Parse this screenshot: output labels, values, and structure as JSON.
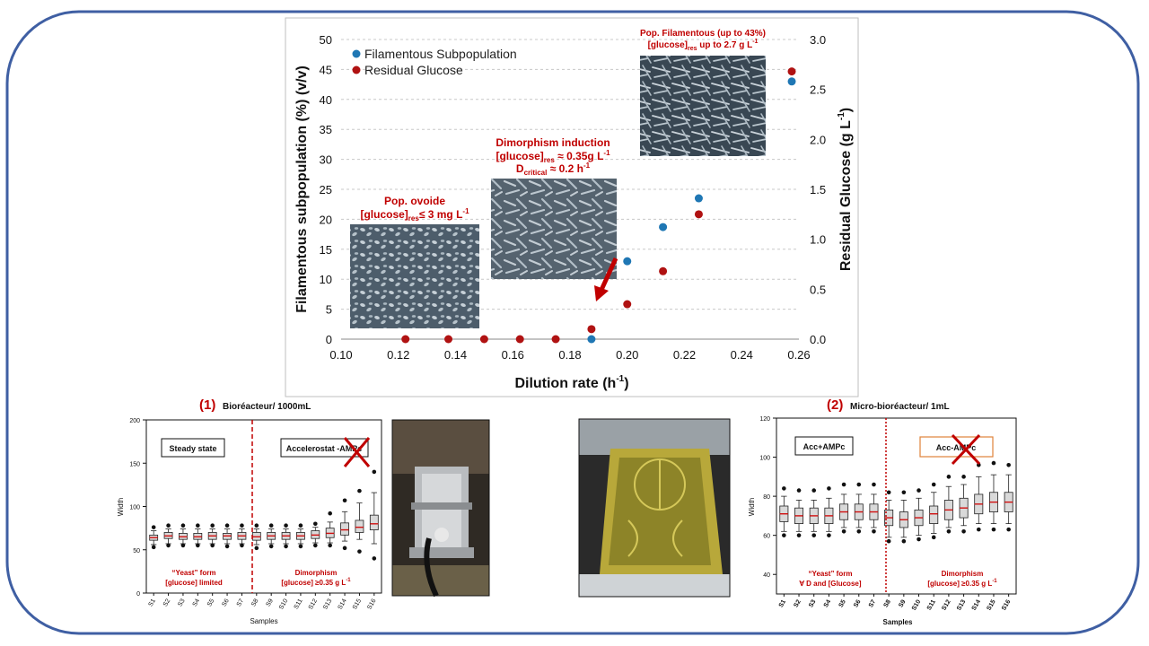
{
  "colors": {
    "frame": "#3f5fa3",
    "blue": "#1f77b4",
    "red": "#b01212",
    "label_red": "#c00000",
    "grid": "#c8c8c8",
    "photo_dark": "#4a5a68",
    "photo_light": "#b7c3cc",
    "box_fill": "#d9d9d9",
    "median": "#d01010"
  },
  "icons": [
    "cross-icon"
  ],
  "chart_data": [
    {
      "type": "scatter",
      "xlabel": "Dilution rate (h",
      "xlabel_sup": "-1",
      "xlabel_tail": ")",
      "ylabel": "Filamentous subpopulation (%) (v/v)",
      "y2label": "Residual Glucose (g L",
      "y2label_sup": "-1",
      "y2label_tail": ")",
      "xlim": [
        0.1,
        0.26
      ],
      "ylim": [
        0,
        50
      ],
      "y2lim": [
        0,
        3.0
      ],
      "grid": true,
      "legend_position": "top-left",
      "x_ticks": [
        "0.10",
        "0.12",
        "0.14",
        "0.16",
        "0.18",
        "0.20",
        "0.22",
        "0.24",
        "0.26"
      ],
      "y_ticks": [
        "0",
        "5",
        "10",
        "15",
        "20",
        "25",
        "30",
        "35",
        "40",
        "45",
        "50"
      ],
      "y2_ticks": [
        "0.0",
        "0.5",
        "1.0",
        "1.5",
        "2.0",
        "2.5",
        "3.0"
      ],
      "series": [
        {
          "name": "Filamentous Subpopulation",
          "axis": "y",
          "x": [
            0.1875,
            0.2,
            0.2125,
            0.225,
            0.2575
          ],
          "y": [
            0,
            13,
            18.7,
            23.5,
            43
          ]
        },
        {
          "name": "Residual Glucose",
          "axis": "y2",
          "x": [
            0.1225,
            0.1375,
            0.15,
            0.1625,
            0.175,
            0.1875,
            0.2,
            0.2125,
            0.225,
            0.2575
          ],
          "y": [
            0,
            0,
            0,
            0,
            0,
            0.1,
            0.35,
            0.68,
            1.25,
            2.68
          ]
        }
      ],
      "annotations": {
        "ovoid": {
          "line1": "Pop. ovoide",
          "line2a": "[glucose]",
          "line2sub": "res",
          "line2b": "≤ 3 mg L",
          "line2sup": "-1"
        },
        "dimorphism": {
          "line1": "Dimorphism induction",
          "line2a": "[glucose]",
          "line2sub": "res",
          "line2b": " ≈ 0.35g L",
          "line2sup": "-1",
          "line3a": "D",
          "line3sub": "critical",
          "line3b": " ≈ 0.2 h",
          "line3sup": "-1"
        },
        "filamentous": {
          "line1": "Pop. Filamentous  (up to 43%)",
          "line2a": "[glucose]",
          "line2sub": "res",
          "line2b": " up to 2.7 g L",
          "line2sup": "-1"
        }
      }
    },
    {
      "type": "box",
      "section_number": "(1)",
      "section_title": "Bioréacteur/ 1000mL",
      "xlabel": "Samples",
      "ylabel": "Width",
      "ylim": [
        0,
        200
      ],
      "y_ticks": [
        "0",
        "50",
        "100",
        "150",
        "200"
      ],
      "categories": [
        "S1",
        "S2",
        "S3",
        "S4",
        "S5",
        "S6",
        "S7",
        "S8",
        "S9",
        "S10",
        "S11",
        "S12",
        "S13",
        "S14",
        "S15",
        "S16"
      ],
      "q1": [
        61,
        63,
        62,
        62,
        62,
        62,
        62,
        61,
        62,
        62,
        62,
        63,
        64,
        67,
        70,
        73
      ],
      "median": [
        64,
        66,
        65,
        65,
        66,
        66,
        66,
        65,
        66,
        66,
        66,
        67,
        69,
        73,
        76,
        80
      ],
      "q3": [
        67,
        70,
        69,
        69,
        70,
        69,
        70,
        70,
        70,
        70,
        70,
        72,
        75,
        81,
        84,
        90
      ],
      "wlow": [
        56,
        57,
        57,
        57,
        57,
        57,
        57,
        56,
        57,
        57,
        57,
        58,
        58,
        60,
        62,
        57
      ],
      "whigh": [
        72,
        74,
        74,
        74,
        74,
        74,
        74,
        74,
        74,
        74,
        74,
        76,
        82,
        94,
        104,
        116
      ],
      "out_low": [
        53,
        55,
        55,
        55,
        55,
        54,
        55,
        52,
        54,
        54,
        54,
        55,
        55,
        52,
        48,
        40
      ],
      "out_high": [
        76,
        78,
        78,
        78,
        78,
        78,
        78,
        78,
        78,
        78,
        78,
        80,
        92,
        107,
        118,
        140
      ],
      "split_after_index": 6,
      "box_left_label": "Steady state",
      "box_right_label": "Accelerostat -AMPc",
      "left_note_line1": "“Yeast” form",
      "left_note_line2": "[glucose] limited",
      "right_note_line1": "Dimorphism",
      "right_note_line2": "[glucose] ≥0.35 g L",
      "right_note_sup": "-1"
    },
    {
      "type": "box",
      "section_number": "(2)",
      "section_title": "Micro-bioréacteur/ 1mL",
      "xlabel": "Samples",
      "ylabel": "Width",
      "ylim": [
        30,
        120
      ],
      "y_ticks": [
        "40",
        "60",
        "80",
        "100",
        "120"
      ],
      "categories": [
        "S1",
        "S2",
        "S3",
        "S4",
        "S5",
        "S6",
        "S7",
        "S8",
        "S9",
        "S10",
        "S11",
        "S12",
        "S13",
        "S14",
        "S15",
        "S16"
      ],
      "q1": [
        67,
        66,
        66,
        66,
        68,
        68,
        68,
        65,
        64,
        65,
        66,
        68,
        69,
        71,
        72,
        72
      ],
      "median": [
        71,
        70,
        70,
        70,
        72,
        72,
        72,
        69,
        68,
        69,
        71,
        73,
        74,
        76,
        77,
        77
      ],
      "q3": [
        75,
        74,
        74,
        74,
        76,
        76,
        76,
        73,
        72,
        73,
        75,
        78,
        79,
        81,
        82,
        82
      ],
      "wlow": [
        62,
        62,
        62,
        62,
        64,
        64,
        64,
        59,
        59,
        60,
        61,
        64,
        65,
        66,
        66,
        66
      ],
      "whigh": [
        80,
        78,
        78,
        79,
        81,
        81,
        81,
        78,
        78,
        79,
        82,
        85,
        86,
        90,
        91,
        91
      ],
      "out_low": [
        60,
        60,
        60,
        60,
        62,
        62,
        62,
        57,
        57,
        58,
        59,
        62,
        62,
        63,
        63,
        63
      ],
      "out_high": [
        84,
        83,
        83,
        84,
        86,
        86,
        86,
        82,
        82,
        83,
        86,
        90,
        90,
        96,
        97,
        96
      ],
      "split_after_index": 6,
      "box_left_label": "Acc+AMPc",
      "box_right_label": "Acc-AMPc",
      "left_note_line1": "“Yeast” form",
      "left_note_line2": "∀ D and [Glucose]",
      "right_note_line1": "Dimorphism",
      "right_note_line2": "[glucose] ≥0.35 g L",
      "right_note_sup": "-1"
    }
  ]
}
